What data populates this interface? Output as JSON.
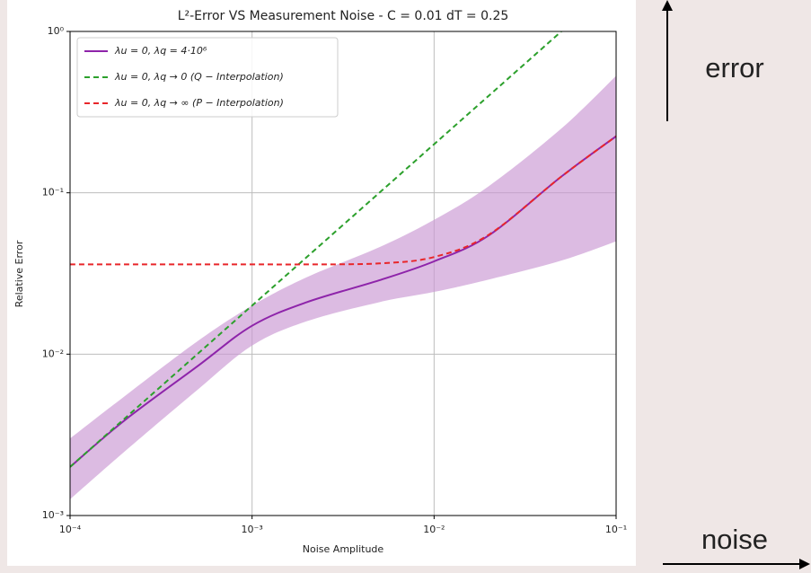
{
  "chart_data": {
    "type": "line",
    "title": "L²-Error  VS  Measurement Noise  -  C = 0.01   dT = 0.25",
    "xlabel": "Noise Amplitude",
    "ylabel": "Relative Error",
    "log_x": true,
    "log_y": true,
    "grid": true,
    "legend": "upper left",
    "xlim": [
      0.0001,
      0.1
    ],
    "ylim": [
      0.001,
      1
    ],
    "xticks": [
      {
        "value": 0.0001,
        "label": "10⁻⁴"
      },
      {
        "value": 0.001,
        "label": "10⁻³"
      },
      {
        "value": 0.01,
        "label": "10⁻²"
      },
      {
        "value": 0.1,
        "label": "10⁻¹"
      }
    ],
    "yticks": [
      {
        "value": 0.001,
        "label": "10⁻³"
      },
      {
        "value": 0.01,
        "label": "10⁻²"
      },
      {
        "value": 0.1,
        "label": "10⁻¹"
      },
      {
        "value": 1,
        "label": "10⁰"
      }
    ],
    "x": [
      0.0001,
      0.0002,
      0.0005,
      0.001,
      0.002,
      0.005,
      0.01,
      0.02,
      0.05,
      0.1
    ],
    "series": [
      {
        "name": "λu = 0,   λq = 4·10⁶",
        "color": "#8e24aa",
        "dash": "none",
        "band_color": "#c996d2",
        "values": [
          0.002,
          0.0039,
          0.0084,
          0.015,
          0.021,
          0.0287,
          0.0376,
          0.0545,
          0.126,
          0.224
        ],
        "lower": [
          0.00126,
          0.0025,
          0.006,
          0.0113,
          0.016,
          0.021,
          0.0243,
          0.029,
          0.038,
          0.05
        ],
        "upper": [
          0.003,
          0.0055,
          0.012,
          0.02,
          0.03,
          0.046,
          0.068,
          0.11,
          0.25,
          0.53
        ]
      },
      {
        "name": "λu = 0,   λq → 0   (Q − Interpolation)",
        "color": "#2ca02c",
        "dash": "6 4",
        "values": [
          0.002,
          0.004,
          0.01,
          0.02,
          0.04,
          0.1,
          0.2,
          0.4,
          1.0,
          null
        ]
      },
      {
        "name": "λu = 0,   λq → ∞   (P − Interpolation)",
        "color": "#e8262a",
        "dash": "6 4",
        "values": [
          0.036,
          0.036,
          0.036,
          0.036,
          0.036,
          0.0365,
          0.04,
          0.055,
          0.126,
          0.224
        ]
      }
    ],
    "annotations": [
      "error",
      "noise"
    ]
  }
}
